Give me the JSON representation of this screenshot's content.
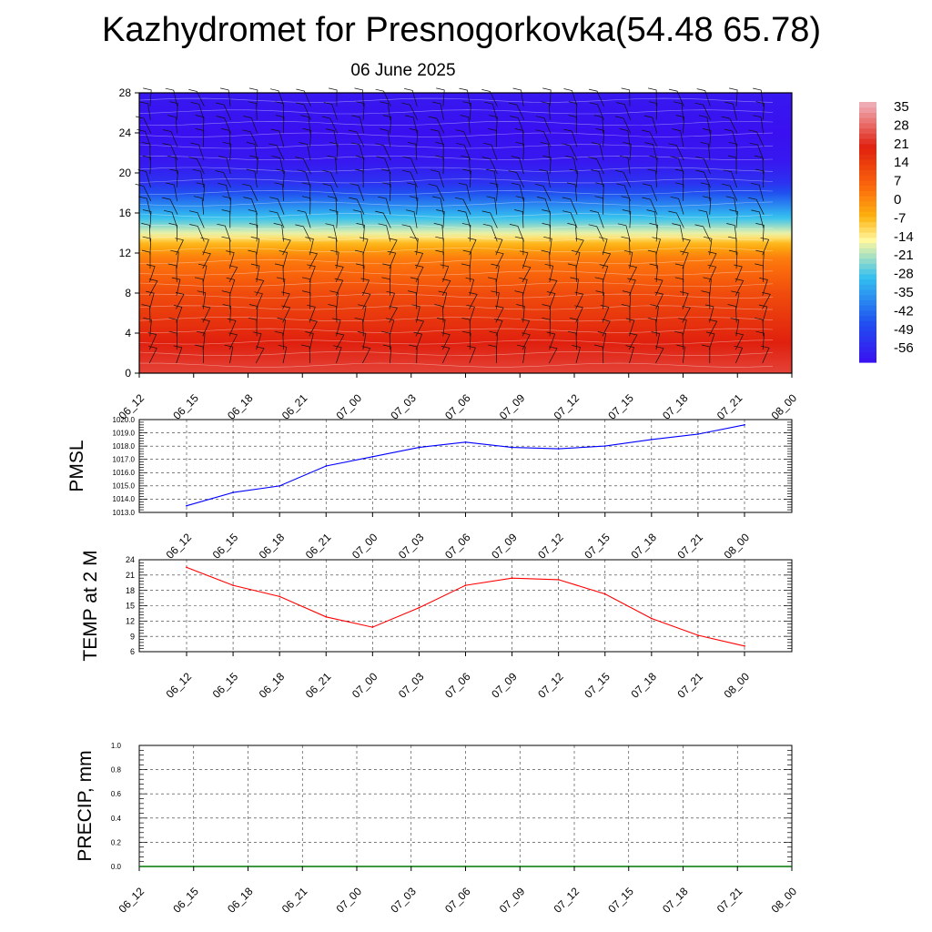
{
  "title": "Kazhydromet for Presnogorkovka(54.48 65.78)",
  "subtitle": "06 June 2025",
  "chart_data": [
    {
      "type": "heatmap",
      "y_ticks": [
        "0",
        "4",
        "8",
        "12",
        "16",
        "20",
        "24",
        "28"
      ],
      "ylim": [
        0,
        28
      ],
      "x_ticks": [
        "06_12",
        "06_15",
        "06_18",
        "06_21",
        "07_00",
        "07_03",
        "07_06",
        "07_09",
        "07_12",
        "07_15",
        "07_18",
        "07_21",
        "08_00"
      ],
      "colorbar_labels": [
        "35",
        "28",
        "21",
        "14",
        "7",
        "0",
        "-7",
        "-14",
        "-21",
        "-28",
        "-35",
        "-42",
        "-49",
        "-56"
      ],
      "colorbar_range": [
        -60,
        38
      ],
      "profile": [
        {
          "level": 0,
          "temp": 25
        },
        {
          "level": 3,
          "temp": 21
        },
        {
          "level": 8,
          "temp": 12
        },
        {
          "level": 11.5,
          "temp": 3
        },
        {
          "level": 13,
          "temp": -6
        },
        {
          "level": 13.8,
          "temp": -14
        },
        {
          "level": 15,
          "temp": -24
        },
        {
          "level": 17,
          "temp": -38
        },
        {
          "level": 19,
          "temp": -52
        },
        {
          "level": 21,
          "temp": -58
        },
        {
          "level": 24,
          "temp": -60
        },
        {
          "level": 28,
          "temp": -58
        }
      ],
      "colors": {
        "hot": "#e0200e",
        "warm": "#fb6a0c",
        "orange": "#fdb210",
        "yellow": "#fff8a0",
        "cyan": "#33c0f0",
        "blue": "#2050f0",
        "violet": "#3a10f0"
      }
    },
    {
      "type": "line",
      "ylabel": "PMSL",
      "ylim": [
        1013.0,
        1020.0
      ],
      "y_ticks": [
        "1013.0",
        "1014.0",
        "1015.0",
        "1016.0",
        "1017.0",
        "1018.0",
        "1019.0",
        "1020.0"
      ],
      "x": [
        "06_12",
        "06_15",
        "06_18",
        "06_21",
        "07_00",
        "07_03",
        "07_06",
        "07_09",
        "07_12",
        "07_15",
        "07_18",
        "07_21",
        "08_00"
      ],
      "values": [
        1013.5,
        1014.5,
        1015.0,
        1016.5,
        1017.2,
        1017.9,
        1018.3,
        1017.9,
        1017.8,
        1018.0,
        1018.5,
        1018.9,
        1019.6
      ],
      "color": "#0000ff"
    },
    {
      "type": "line",
      "ylabel": "TEMP at 2 M",
      "ylim": [
        6,
        24
      ],
      "y_ticks": [
        "6",
        "9",
        "12",
        "15",
        "18",
        "21",
        "24"
      ],
      "x": [
        "06_12",
        "06_15",
        "06_18",
        "06_21",
        "07_00",
        "07_03",
        "07_06",
        "07_09",
        "07_12",
        "07_15",
        "07_18",
        "07_21",
        "08_00"
      ],
      "values": [
        22.5,
        19.0,
        16.8,
        12.8,
        10.8,
        14.6,
        19.0,
        20.4,
        20.1,
        17.3,
        12.5,
        9.2,
        7.1
      ],
      "color": "#ff0000"
    },
    {
      "type": "line",
      "ylabel": "PRECIP, mm",
      "ylim": [
        0.0,
        1.0
      ],
      "y_ticks": [
        "0.0",
        "0.2",
        "0.4",
        "0.6",
        "0.8",
        "1.0"
      ],
      "x": [
        "06_12",
        "06_15",
        "06_18",
        "06_21",
        "07_00",
        "07_03",
        "07_06",
        "07_09",
        "07_12",
        "07_15",
        "07_18",
        "07_21",
        "08_00"
      ],
      "values": [
        0,
        0,
        0,
        0,
        0,
        0,
        0,
        0,
        0,
        0,
        0,
        0,
        0
      ],
      "color": "#007700"
    }
  ]
}
